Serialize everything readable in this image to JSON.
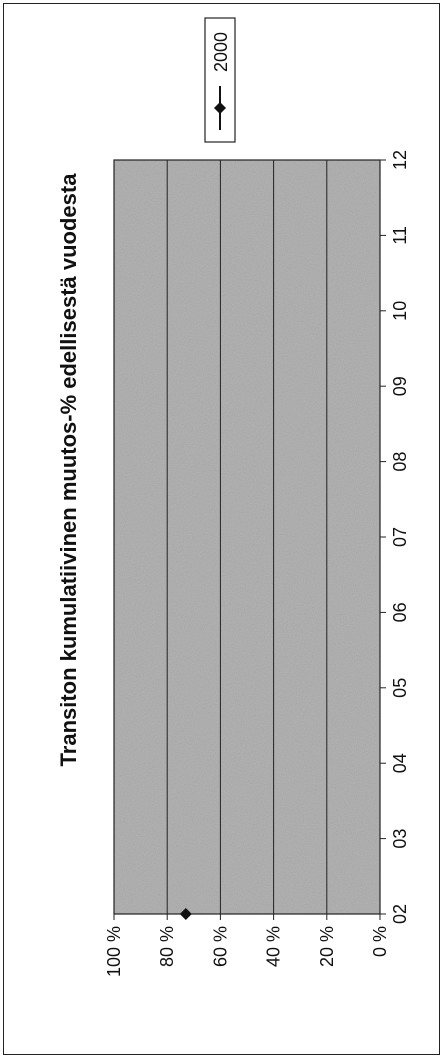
{
  "chart_data": {
    "type": "line",
    "title": "Transiton kumulatiivinen muutos-% edellisestä vuodesta",
    "xlabel": "",
    "ylabel": "",
    "categories": [
      "02",
      "03",
      "04",
      "05",
      "06",
      "07",
      "08",
      "09",
      "10",
      "11",
      "12"
    ],
    "series": [
      {
        "name": "2000",
        "values": [
          73,
          null,
          null,
          null,
          null,
          null,
          null,
          null,
          null,
          null,
          null
        ]
      }
    ],
    "ylim": [
      0,
      100
    ],
    "yticks": [
      "0 %",
      "20 %",
      "40 %",
      "60 %",
      "80 %",
      "100 %"
    ],
    "grid": true,
    "legend": "top-right",
    "orientation": "rotated-90",
    "colors": {
      "plot_area": "#b4b4b4",
      "marker": "#111111",
      "gridline": "#222222"
    }
  }
}
